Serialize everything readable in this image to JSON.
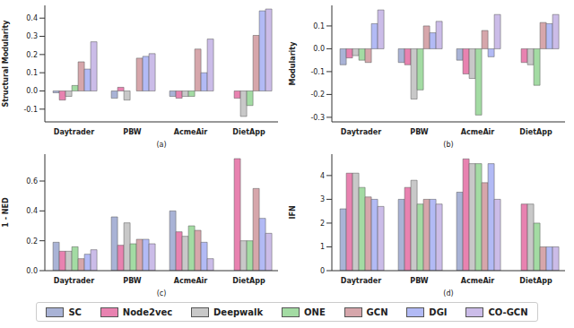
{
  "chart_data": [
    {
      "type": "bar",
      "xlabel": "(a)",
      "ylabel": "Structural Modularity",
      "categories": [
        "Daytrader",
        "PBW",
        "AcmeAir",
        "DietApp"
      ],
      "ylim": [
        -0.17,
        0.47
      ],
      "yticks": [
        -0.1,
        {
          "value": 0,
          "label": "0.0"
        },
        0.1,
        0.2,
        0.3,
        0.4
      ],
      "series": [
        {
          "name": "SC",
          "color": "#a9b3d6",
          "values": [
            -0.01,
            -0.04,
            -0.03,
            null
          ]
        },
        {
          "name": "Node2vec",
          "color": "#e882b0",
          "values": [
            -0.05,
            0.02,
            -0.04,
            -0.04
          ]
        },
        {
          "name": "Deepwalk",
          "color": "#c8c8c8",
          "values": [
            -0.03,
            -0.05,
            -0.03,
            -0.14
          ]
        },
        {
          "name": "ONE",
          "color": "#a3dba3",
          "values": [
            0.03,
            0.0,
            -0.03,
            -0.08
          ]
        },
        {
          "name": "GCN",
          "color": "#d6a6ab",
          "values": [
            0.16,
            0.18,
            0.23,
            0.305
          ]
        },
        {
          "name": "DGI",
          "color": "#b2baf5",
          "values": [
            0.12,
            0.19,
            0.1,
            0.44
          ]
        },
        {
          "name": "CO-GCN",
          "color": "#cbbce8",
          "values": [
            0.27,
            0.205,
            0.285,
            0.45
          ]
        }
      ]
    },
    {
      "type": "bar",
      "xlabel": "(b)",
      "ylabel": "Modularity",
      "categories": [
        "Daytrader",
        "PBW",
        "AcmeAir",
        "DietApp"
      ],
      "ylim": [
        -0.32,
        0.19
      ],
      "yticks": [
        -0.3,
        -0.2,
        -0.1,
        {
          "value": 0,
          "label": "0.0"
        },
        0.1
      ],
      "series": [
        {
          "name": "SC",
          "color": "#a9b3d6",
          "values": [
            -0.07,
            -0.06,
            -0.05,
            null
          ]
        },
        {
          "name": "Node2vec",
          "color": "#e882b0",
          "values": [
            -0.04,
            -0.07,
            -0.11,
            -0.06
          ]
        },
        {
          "name": "Deepwalk",
          "color": "#c8c8c8",
          "values": [
            -0.03,
            -0.22,
            -0.13,
            -0.07
          ]
        },
        {
          "name": "ONE",
          "color": "#a3dba3",
          "values": [
            -0.05,
            -0.18,
            -0.29,
            -0.16
          ]
        },
        {
          "name": "GCN",
          "color": "#d6a6ab",
          "values": [
            -0.06,
            0.1,
            0.08,
            0.115
          ]
        },
        {
          "name": "DGI",
          "color": "#b2baf5",
          "values": [
            0.11,
            0.07,
            -0.035,
            0.11
          ]
        },
        {
          "name": "CO-GCN",
          "color": "#cbbce8",
          "values": [
            0.17,
            0.12,
            0.15,
            0.15
          ]
        }
      ]
    },
    {
      "type": "bar",
      "xlabel": "(c)",
      "ylabel": "1 - NED",
      "categories": [
        "Daytrader",
        "PBW",
        "AcmeAir",
        "DietApp"
      ],
      "ylim": [
        0,
        0.78
      ],
      "yticks": [
        {
          "value": 0,
          "label": "0.0"
        },
        0.2,
        0.4,
        0.6
      ],
      "series": [
        {
          "name": "SC",
          "color": "#a9b3d6",
          "values": [
            0.19,
            0.36,
            0.4,
            null
          ]
        },
        {
          "name": "Node2vec",
          "color": "#e882b0",
          "values": [
            0.13,
            0.17,
            0.26,
            0.75
          ]
        },
        {
          "name": "Deepwalk",
          "color": "#c8c8c8",
          "values": [
            0.13,
            0.32,
            0.23,
            0.2
          ]
        },
        {
          "name": "ONE",
          "color": "#a3dba3",
          "values": [
            0.16,
            0.18,
            0.3,
            0.2
          ]
        },
        {
          "name": "GCN",
          "color": "#d6a6ab",
          "values": [
            0.08,
            0.21,
            0.27,
            0.55
          ]
        },
        {
          "name": "DGI",
          "color": "#b2baf5",
          "values": [
            0.11,
            0.21,
            0.19,
            0.35
          ]
        },
        {
          "name": "CO-GCN",
          "color": "#cbbce8",
          "values": [
            0.14,
            0.18,
            0.08,
            0.25
          ]
        }
      ]
    },
    {
      "type": "bar",
      "xlabel": "(d)",
      "ylabel": "IFN",
      "categories": [
        "Daytrader",
        "PBW",
        "AcmeAir",
        "DietApp"
      ],
      "ylim": [
        0,
        4.9
      ],
      "yticks": [
        0,
        1,
        2,
        3,
        4
      ],
      "series": [
        {
          "name": "SC",
          "color": "#a9b3d6",
          "values": [
            2.6,
            3.0,
            3.3,
            null
          ]
        },
        {
          "name": "Node2vec",
          "color": "#e882b0",
          "values": [
            4.1,
            3.5,
            4.7,
            2.8
          ]
        },
        {
          "name": "Deepwalk",
          "color": "#c8c8c8",
          "values": [
            4.1,
            3.8,
            4.5,
            2.8
          ]
        },
        {
          "name": "ONE",
          "color": "#a3dba3",
          "values": [
            3.5,
            2.8,
            4.5,
            2.0
          ]
        },
        {
          "name": "GCN",
          "color": "#d6a6ab",
          "values": [
            3.1,
            3.0,
            3.7,
            1.0
          ]
        },
        {
          "name": "DGI",
          "color": "#b2baf5",
          "values": [
            3.0,
            3.0,
            4.5,
            1.0
          ]
        },
        {
          "name": "CO-GCN",
          "color": "#cbbce8",
          "values": [
            2.7,
            2.8,
            3.0,
            1.0
          ]
        }
      ]
    }
  ]
}
